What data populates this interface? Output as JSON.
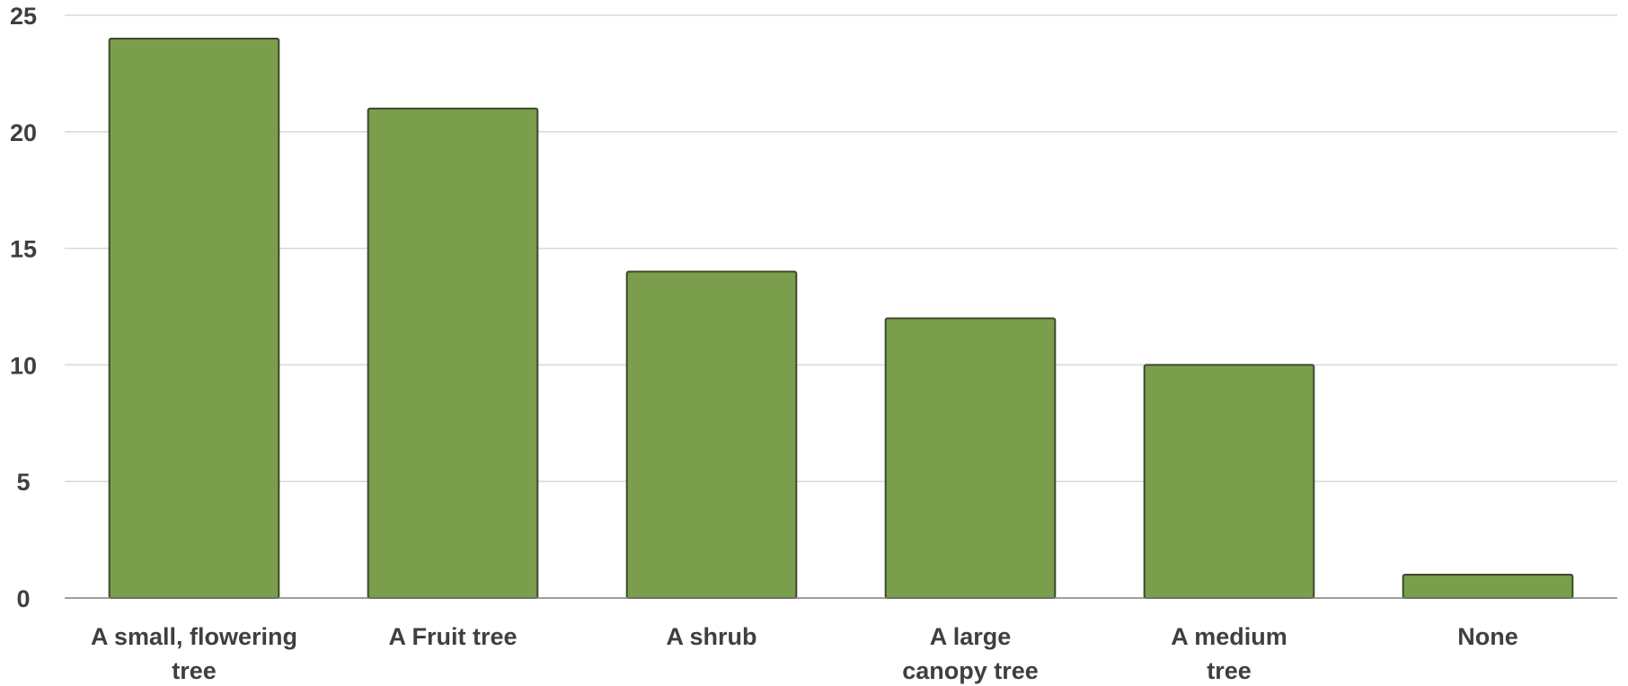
{
  "chart_data": {
    "type": "bar",
    "title": "",
    "xlabel": "",
    "ylabel": "",
    "categories": [
      [
        "A small, flowering",
        "tree"
      ],
      [
        "A Fruit tree"
      ],
      [
        "A shrub"
      ],
      [
        "A large",
        "canopy tree"
      ],
      [
        "A  medium",
        "tree"
      ],
      [
        "None"
      ]
    ],
    "values": [
      24,
      21,
      14,
      12,
      10,
      1
    ],
    "ylim": [
      0,
      25
    ],
    "yticks": [
      0,
      5,
      10,
      15,
      20,
      25
    ],
    "grid": true,
    "legend": "none",
    "colors": {
      "bar_fill": "#7a9e4b",
      "bar_stroke": "#3d4a2a",
      "gridline": "#d9d9d9",
      "axis": "#7f7f7f",
      "text": "#3f3f3f"
    }
  }
}
